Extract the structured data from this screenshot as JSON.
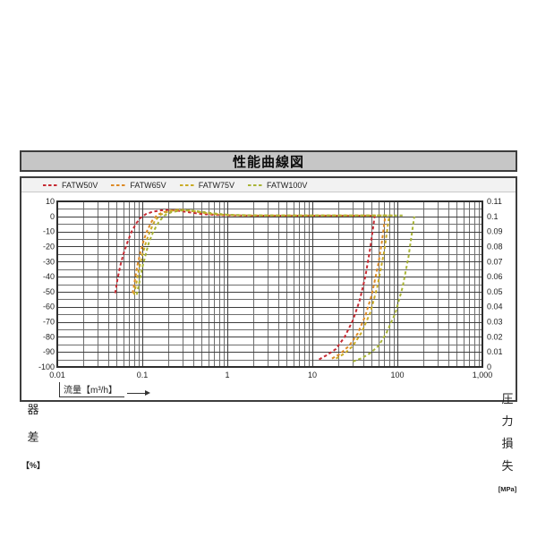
{
  "page": {
    "title": "性能曲線図"
  },
  "chart_data": {
    "type": "line",
    "x_scale": "log",
    "x_range": [
      0.01,
      1000
    ],
    "grid": "on",
    "legend_position": "top-left",
    "axes": {
      "x_label": "流量【m³/h】",
      "x_ticks": [
        {
          "label": "0.01",
          "value": 0.01
        },
        {
          "label": "0.1",
          "value": 0.1
        },
        {
          "label": "1",
          "value": 1
        },
        {
          "label": "10",
          "value": 10
        },
        {
          "label": "100",
          "value": 100
        },
        {
          "label": "1,000",
          "value": 1000
        }
      ],
      "left_label_chars": [
        "器",
        "差"
      ],
      "left_unit": "【%】",
      "left_ticks": [
        10,
        0,
        -10,
        -20,
        -30,
        -40,
        -50,
        -60,
        -70,
        -80,
        -90,
        -100
      ],
      "left_range": [
        10,
        -100
      ],
      "right_label_chars": [
        "圧",
        "力",
        "損",
        "失"
      ],
      "right_unit": "[MPa]",
      "right_ticks": [
        "0.11",
        "0.1",
        "0.09",
        "0.08",
        "0.07",
        "0.06",
        "0.05",
        "0.04",
        "0.03",
        "0.02",
        "0.01",
        "0"
      ],
      "right_range": [
        0.11,
        0
      ]
    },
    "legend": [
      {
        "label": "FATW50V",
        "color": "#c62b33"
      },
      {
        "label": "FATW65V",
        "color": "#dd8a26"
      },
      {
        "label": "FATW75V",
        "color": "#c9ab25"
      },
      {
        "label": "FATW100V",
        "color": "#a8b437"
      }
    ],
    "series": [
      {
        "name": "FATW50V-error",
        "model": "FATW50V",
        "color": "#c62b33",
        "axis": "error",
        "points": [
          [
            0.048,
            -51
          ],
          [
            0.051,
            -42
          ],
          [
            0.055,
            -33
          ],
          [
            0.06,
            -25
          ],
          [
            0.067,
            -17
          ],
          [
            0.075,
            -10
          ],
          [
            0.085,
            -4.5
          ],
          [
            0.095,
            -1
          ],
          [
            0.11,
            1.5
          ],
          [
            0.13,
            3
          ],
          [
            0.16,
            4
          ],
          [
            0.2,
            4.3
          ],
          [
            0.26,
            3.8
          ],
          [
            0.35,
            2.8
          ],
          [
            0.5,
            1.6
          ],
          [
            0.7,
            1
          ],
          [
            1,
            0.7
          ],
          [
            2,
            0.5
          ],
          [
            5,
            0.5
          ],
          [
            10,
            0.5
          ],
          [
            20,
            0.5
          ],
          [
            35,
            0.5
          ],
          [
            52,
            0.5
          ]
        ]
      },
      {
        "name": "FATW65V-error",
        "model": "FATW65V",
        "color": "#dd8a26",
        "axis": "error",
        "points": [
          [
            0.077,
            -51
          ],
          [
            0.082,
            -42
          ],
          [
            0.088,
            -32
          ],
          [
            0.096,
            -23
          ],
          [
            0.105,
            -15
          ],
          [
            0.115,
            -9
          ],
          [
            0.13,
            -3
          ],
          [
            0.15,
            1
          ],
          [
            0.18,
            3
          ],
          [
            0.23,
            4.2
          ],
          [
            0.3,
            4.3
          ],
          [
            0.4,
            3.4
          ],
          [
            0.55,
            2.2
          ],
          [
            0.8,
            1.2
          ],
          [
            1.2,
            0.8
          ],
          [
            3,
            0.6
          ],
          [
            10,
            0.6
          ],
          [
            30,
            0.6
          ],
          [
            50,
            0.6
          ],
          [
            75,
            0.6
          ]
        ]
      },
      {
        "name": "FATW75V-error",
        "model": "FATW75V",
        "color": "#c9ab25",
        "axis": "error",
        "points": [
          [
            0.08,
            -52
          ],
          [
            0.086,
            -43
          ],
          [
            0.093,
            -33
          ],
          [
            0.102,
            -24
          ],
          [
            0.112,
            -16
          ],
          [
            0.125,
            -9
          ],
          [
            0.14,
            -3
          ],
          [
            0.165,
            1.2
          ],
          [
            0.2,
            3.2
          ],
          [
            0.26,
            4.4
          ],
          [
            0.34,
            4.2
          ],
          [
            0.46,
            3
          ],
          [
            0.65,
            1.8
          ],
          [
            0.95,
            1
          ],
          [
            1.5,
            0.7
          ],
          [
            4,
            0.6
          ],
          [
            15,
            0.6
          ],
          [
            40,
            0.6
          ],
          [
            65,
            0.6
          ],
          [
            88,
            0.6
          ]
        ]
      },
      {
        "name": "FATW100V-error",
        "model": "FATW100V",
        "color": "#a8b437",
        "axis": "error",
        "points": [
          [
            0.086,
            -52
          ],
          [
            0.092,
            -44
          ],
          [
            0.1,
            -34
          ],
          [
            0.11,
            -25
          ],
          [
            0.12,
            -17
          ],
          [
            0.135,
            -10
          ],
          [
            0.155,
            -4
          ],
          [
            0.18,
            0.5
          ],
          [
            0.22,
            2.8
          ],
          [
            0.29,
            4
          ],
          [
            0.38,
            4
          ],
          [
            0.52,
            3
          ],
          [
            0.75,
            1.8
          ],
          [
            1.1,
            1
          ],
          [
            2,
            0.7
          ],
          [
            6,
            0.6
          ],
          [
            20,
            0.6
          ],
          [
            60,
            0.6
          ],
          [
            90,
            0.6
          ],
          [
            115,
            0.6
          ]
        ]
      },
      {
        "name": "FATW50V-pressure-loss",
        "model": "FATW50V",
        "color": "#c62b33",
        "axis": "pressure",
        "points": [
          [
            12,
            0.005
          ],
          [
            15,
            0.008
          ],
          [
            19,
            0.012
          ],
          [
            24,
            0.02
          ],
          [
            30,
            0.031
          ],
          [
            36,
            0.044
          ],
          [
            42,
            0.06
          ],
          [
            48,
            0.079
          ],
          [
            54,
            0.1
          ]
        ]
      },
      {
        "name": "FATW65V-pressure-loss",
        "model": "FATW65V",
        "color": "#dd8a26",
        "axis": "pressure",
        "points": [
          [
            17,
            0.0056
          ],
          [
            21,
            0.0085
          ],
          [
            27,
            0.014
          ],
          [
            34,
            0.022
          ],
          [
            42,
            0.034
          ],
          [
            50,
            0.048
          ],
          [
            60,
            0.069
          ],
          [
            66,
            0.084
          ],
          [
            72,
            0.1
          ]
        ]
      },
      {
        "name": "FATW75V-pressure-loss",
        "model": "FATW75V",
        "color": "#c9ab25",
        "axis": "pressure",
        "points": [
          [
            19,
            0.0056
          ],
          [
            24,
            0.009
          ],
          [
            30,
            0.014
          ],
          [
            38,
            0.023
          ],
          [
            48,
            0.036
          ],
          [
            58,
            0.053
          ],
          [
            70,
            0.077
          ],
          [
            80,
            0.1
          ]
        ]
      },
      {
        "name": "FATW100V-pressure-loss",
        "model": "FATW100V",
        "color": "#a8b437",
        "axis": "pressure",
        "points": [
          [
            30,
            0.0036
          ],
          [
            38,
            0.0058
          ],
          [
            48,
            0.0092
          ],
          [
            60,
            0.014
          ],
          [
            75,
            0.023
          ],
          [
            95,
            0.036
          ],
          [
            115,
            0.053
          ],
          [
            135,
            0.073
          ],
          [
            158,
            0.1
          ]
        ]
      }
    ]
  }
}
